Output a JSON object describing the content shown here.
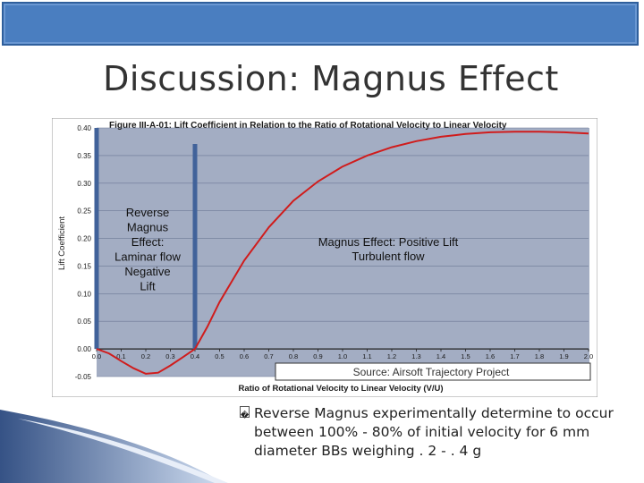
{
  "slide": {
    "title": "Discussion: Magnus Effect",
    "bullet_text": "Reverse Magnus experimentally determine to occur between 100% - 80% of initial velocity for 6 mm diameter BBs weighing . 2 - . 4 g",
    "bullet_glyph": "�"
  },
  "colors": {
    "header": "#4a7ec0",
    "plot_background": "#a3adc3",
    "curve": "#d01c1c",
    "divider": "#41629a"
  },
  "chart_data": {
    "type": "line",
    "title": "Figure III-A-01: Lift Coefficient in Relation to the Ratio of Rotational Velocity to Linear Velocity",
    "xlabel": "Ratio of Rotational Velocity to Linear Velocity (V/U)",
    "ylabel": "Lift Coefficient",
    "xlim": [
      0.0,
      2.0
    ],
    "ylim": [
      -0.05,
      0.4
    ],
    "x_ticks": [
      "0.0",
      "0.1",
      "0.2",
      "0.3",
      "0.4",
      "0.5",
      "0.6",
      "0.7",
      "0.8",
      "0.9",
      "1.0",
      "1.1",
      "1.2",
      "1.3",
      "1.4",
      "1.5",
      "1.6",
      "1.7",
      "1.8",
      "1.9",
      "2.0"
    ],
    "y_ticks": [
      "0.40",
      "0.35",
      "0.30",
      "0.25",
      "0.20",
      "0.15",
      "0.10",
      "0.05",
      "0.00",
      "-0.05"
    ],
    "series": [
      {
        "x": [
          0.0,
          0.05,
          0.1,
          0.15,
          0.2,
          0.25,
          0.3,
          0.35,
          0.4,
          0.45,
          0.5,
          0.6,
          0.7,
          0.8,
          0.9,
          1.0,
          1.1,
          1.2,
          1.3,
          1.4,
          1.5,
          1.6,
          1.7,
          1.8,
          1.9,
          2.0
        ],
        "y": [
          0.0,
          -0.008,
          -0.022,
          -0.035,
          -0.045,
          -0.043,
          -0.03,
          -0.015,
          0.0,
          0.04,
          0.085,
          0.16,
          0.22,
          0.268,
          0.303,
          0.33,
          0.35,
          0.365,
          0.376,
          0.384,
          0.389,
          0.392,
          0.393,
          0.393,
          0.392,
          0.39
        ]
      }
    ],
    "divider_x": 0.4,
    "annotations": {
      "reverse": [
        "Reverse",
        "Magnus",
        "Effect:",
        "Laminar flow",
        "Negative",
        "Lift"
      ],
      "positive": [
        "Magnus Effect: Positive Lift",
        "Turbulent flow"
      ],
      "source": "Source: Airsoft Trajectory Project"
    }
  }
}
